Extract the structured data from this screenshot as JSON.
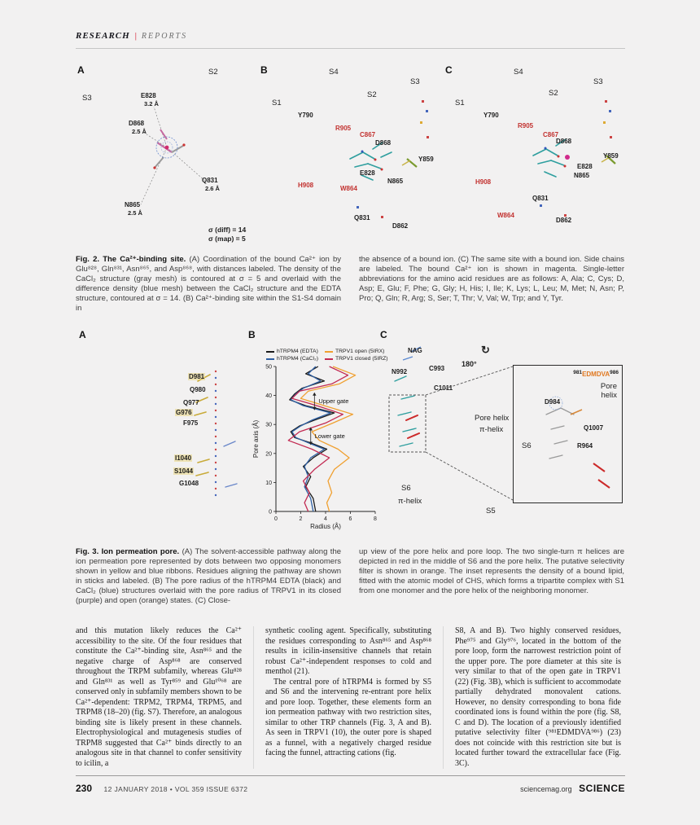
{
  "header": {
    "kicker": "RESEARCH",
    "sep": "|",
    "section": "REPORTS"
  },
  "fig2": {
    "a": {
      "letter": "A",
      "s2": "S2",
      "s3": "S3",
      "e828": "E828",
      "e828_d": "3.2 Å",
      "d868": "D868",
      "d868_d": "2.5 Å",
      "q831": "Q831",
      "q831_d": "2.6 Å",
      "n865": "N865",
      "n865_d": "2.5 Å",
      "sigma_diff": "σ (diff) = 14",
      "sigma_map": "σ (map) = 5"
    },
    "b": {
      "letter": "B",
      "s4": "S4",
      "s3": "S3",
      "s2": "S2",
      "s1": "S1",
      "y790": "Y790",
      "r905": "R905",
      "c867": "C867",
      "d868": "D868",
      "y859": "Y859",
      "e828": "E828",
      "n865": "N865",
      "h908": "H908",
      "w864": "W864",
      "q831": "Q831",
      "d862": "D862"
    },
    "c": {
      "letter": "C",
      "s4": "S4",
      "s3": "S3",
      "s2": "S2",
      "s1": "S1",
      "y790": "Y790",
      "r905": "R905",
      "c867": "C867",
      "d868": "D868",
      "y859": "Y859",
      "e828": "E828",
      "n865": "N865",
      "h908": "H908",
      "w864": "W864",
      "q831": "Q831",
      "d862": "D862"
    },
    "caption": {
      "lead": "Fig. 2. The Ca²⁺-binding site.",
      "left": "(A) Coordination of the bound Ca²⁺ ion by Glu⁸²⁸, Gln⁸³¹, Asn⁸⁶⁵, and Asp⁸⁶⁸, with distances labeled. The density of the CaCl₂ structure (gray mesh) is contoured at σ = 5 and overlaid with the difference density (blue mesh) between the CaCl₂ structure and the EDTA structure, contoured at σ = 14. (B) Ca²⁺-binding site within the S1-S4 domain in",
      "right": "the absence of a bound ion. (C) The same site with a bound ion. Side chains are labeled. The bound Ca²⁺ ion is shown in magenta. Single-letter abbreviations for the amino acid residues are as follows: A, Ala; C, Cys; D, Asp; E, Glu; F, Phe; G, Gly; H, His; I, Ile; K, Lys; L, Leu; M, Met; N, Asn; P, Pro; Q, Gln; R, Arg; S, Ser; T, Thr; V, Val; W, Trp; and Y, Tyr."
    }
  },
  "fig3": {
    "a": {
      "letter": "A",
      "d981": "D981",
      "q980": "Q980",
      "q977": "Q977",
      "g976": "G976",
      "f975": "F975",
      "i1040": "I1040",
      "s1044": "S1044",
      "g1048": "G1048"
    },
    "b": {
      "letter": "B"
    },
    "c": {
      "letter": "C",
      "nag": "NAG",
      "n992": "N992",
      "c993": "C993",
      "c1011": "C1011",
      "rot": "180°",
      "rot_icon": "↻",
      "pore_helix": "Pore helix",
      "pi_helix": "π-helix",
      "s6_lower": "S6",
      "pi_helix_lower": "π-helix",
      "s5": "S5",
      "inset": {
        "pre": "981",
        "main": "EDMDVA",
        "post": "986",
        "pore": "Pore",
        "helix": "helix",
        "d984": "D984",
        "q1007": "Q1007",
        "r964": "R964",
        "s6": "S6"
      }
    },
    "caption": {
      "lead": "Fig. 3. Ion permeation pore.",
      "left": "(A) The solvent-accessible pathway along the ion permeation pore represented by dots between two opposing monomers shown in yellow and blue ribbons. Residues aligning the pathway are shown in sticks and labeled. (B) The pore radius of the hTRPM4 EDTA (black) and CaCl₂ (blue) structures overlaid with the pore radius of TRPV1 in its closed (purple) and open (orange) states. (C) Close-",
      "right": "up view of the pore helix and pore loop. The two single-turn π helices are depicted in red in the middle of S6 and the pore helix. The putative selectivity filter is shown in orange. The inset represents the density of a bound lipid, fitted with the atomic model of CHS, which forms a tripartite complex with S1 from one monomer and the pore helix of the neighboring monomer."
    }
  },
  "chart_data": {
    "type": "line",
    "title": "",
    "xlabel": "Radius (Å)",
    "ylabel": "Pore axis (Å)",
    "xlim": [
      0,
      8
    ],
    "ylim": [
      0,
      50
    ],
    "xticks": [
      0,
      2,
      4,
      6,
      8
    ],
    "yticks": [
      0,
      10,
      20,
      30,
      40,
      50
    ],
    "grid": false,
    "legend_position": "top",
    "annotations": [
      {
        "text": "Upper gate",
        "x": 3.3,
        "y": 38
      },
      {
        "text": "Lower gate",
        "x": 3.0,
        "y": 26
      }
    ],
    "series": [
      {
        "name": "hTRPM4 (EDTA)",
        "color": "#1a1a1a",
        "points": [
          [
            3.4,
            50
          ],
          [
            2.4,
            47.5
          ],
          [
            3.9,
            45
          ],
          [
            2.1,
            42.5
          ],
          [
            1.5,
            40.5
          ],
          [
            1.1,
            38.5
          ],
          [
            2.4,
            36.5
          ],
          [
            4.7,
            34
          ],
          [
            3.1,
            31.5
          ],
          [
            1.9,
            29.5
          ],
          [
            1.2,
            27.5
          ],
          [
            1.5,
            25.5
          ],
          [
            2.9,
            23.5
          ],
          [
            4.1,
            21.5
          ],
          [
            3.0,
            18.5
          ],
          [
            2.2,
            15.5
          ],
          [
            2.8,
            12
          ],
          [
            2.4,
            8.5
          ],
          [
            3.0,
            4.5
          ],
          [
            3.2,
            0
          ]
        ]
      },
      {
        "name": "hTRPM4 (CaCl₂)",
        "color": "#2e5fa3",
        "points": [
          [
            3.2,
            50
          ],
          [
            2.6,
            47.5
          ],
          [
            3.6,
            45
          ],
          [
            2.2,
            42.5
          ],
          [
            1.6,
            40.5
          ],
          [
            1.2,
            38.5
          ],
          [
            2.2,
            36.5
          ],
          [
            4.4,
            34
          ],
          [
            2.9,
            31.5
          ],
          [
            2.0,
            29.5
          ],
          [
            1.3,
            27.5
          ],
          [
            1.6,
            25.5
          ],
          [
            2.7,
            23.5
          ],
          [
            3.9,
            21.5
          ],
          [
            2.8,
            18.5
          ],
          [
            2.3,
            15.5
          ],
          [
            2.6,
            12
          ],
          [
            2.3,
            8.5
          ],
          [
            2.8,
            4.5
          ],
          [
            3.0,
            0
          ]
        ]
      },
      {
        "name": "TRPV1 open (5IRX)",
        "color": "#f0a030",
        "points": [
          [
            4.6,
            50
          ],
          [
            6.4,
            47
          ],
          [
            5.1,
            44
          ],
          [
            2.6,
            41.5
          ],
          [
            2.0,
            39
          ],
          [
            3.9,
            36.5
          ],
          [
            6.2,
            33.5
          ],
          [
            4.6,
            30.5
          ],
          [
            2.9,
            27.5
          ],
          [
            3.5,
            24.5
          ],
          [
            5.0,
            21.5
          ],
          [
            5.9,
            18.5
          ],
          [
            4.7,
            14.5
          ],
          [
            4.2,
            10.5
          ],
          [
            4.5,
            6.5
          ],
          [
            4.1,
            3
          ],
          [
            4.3,
            0
          ]
        ]
      },
      {
        "name": "TRPV1 closed (5IRZ)",
        "color": "#c22a52",
        "points": [
          [
            4.3,
            50
          ],
          [
            5.8,
            47
          ],
          [
            4.5,
            44
          ],
          [
            1.9,
            41.5
          ],
          [
            1.3,
            39
          ],
          [
            3.3,
            36.5
          ],
          [
            5.4,
            33.5
          ],
          [
            4.0,
            30.5
          ],
          [
            1.9,
            27.5
          ],
          [
            1.0,
            24.5
          ],
          [
            2.9,
            21.5
          ],
          [
            4.3,
            18.5
          ],
          [
            3.1,
            14.5
          ],
          [
            2.2,
            10.5
          ],
          [
            2.7,
            6.5
          ],
          [
            2.3,
            3
          ],
          [
            2.6,
            0
          ]
        ]
      }
    ]
  },
  "body": {
    "col1": [
      "and this mutation likely reduces the Ca²⁺ accessibility to the site. Of the four residues that constitute the Ca²⁺-binding site, Asn⁸⁶⁵ and the negative charge of Asp⁸⁶⁸ are conserved throughout the TRPM subfamily, whereas Glu⁸²⁸ and Gln⁸³¹ as well as Tyr⁸⁵⁹ and Glu¹⁰⁶⁸ are conserved only in subfamily members shown to be Ca²⁺-dependent: TRPM2, TRPM4, TRPM5, and TRPM8 (18–20) (fig. S7). Therefore, an analogous binding site is likely present in these channels. Electrophysiological and mutagenesis studies of TRPM8 suggested that Ca²⁺ binds directly to an analogous site in that channel to confer sensitivity to icilin, a"
    ],
    "col2": [
      "synthetic cooling agent. Specifically, substituting the residues corresponding to Asn⁸⁶⁵ and Asp⁸⁶⁸ results in icilin-insensitive channels that retain robust Ca²⁺-independent responses to cold and menthol (21).",
      "The central pore of hTRPM4 is formed by S5 and S6 and the intervening re-entrant pore helix and pore loop. Together, these elements form an ion permeation pathway with two restriction sites, similar to other TRP channels (Fig. 3, A and B). As seen in TRPV1 (10), the outer pore is shaped as a funnel, with a negatively charged residue facing the funnel, attracting cations (fig."
    ],
    "col3": [
      "S8, A and B). Two highly conserved residues, Phe⁹⁷⁵ and Gly⁹⁷⁶, located in the bottom of the pore loop, form the narrowest restriction point of the upper pore. The pore diameter at this site is very similar to that of the open gate in TRPV1 (22) (Fig. 3B), which is sufficient to accommodate partially dehydrated monovalent cations. However, no density corresponding to bona fide coordinated ions is found within the pore (fig. S8, C and D). The location of a previously identified putative selectivity filter (⁹⁸¹EDMDVA⁹⁸⁶) (23) does not coincide with this restriction site but is located further toward the extracellular face (Fig. 3C)."
    ]
  },
  "footer": {
    "page": "230",
    "issue": "12 JANUARY 2018 • VOL 359 ISSUE 6372",
    "site": "sciencemag.org",
    "brand": "SCIENCE"
  }
}
